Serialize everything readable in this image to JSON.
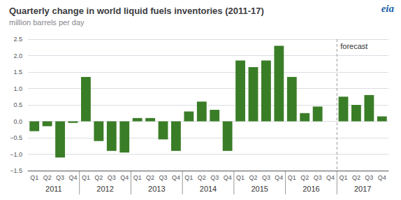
{
  "chart_data": {
    "type": "bar",
    "title": "Quarterly change in world liquid fuels inventories (2011-17)",
    "subtitle": "million barrels per day",
    "categories": [
      "Q1",
      "Q2",
      "Q3",
      "Q4",
      "Q1",
      "Q2",
      "Q3",
      "Q4",
      "Q1",
      "Q2",
      "Q3",
      "Q4",
      "Q1",
      "Q2",
      "Q3",
      "Q4",
      "Q1",
      "Q2",
      "Q3",
      "Q4",
      "Q1",
      "Q2",
      "Q3",
      "Q4",
      "Q1",
      "Q2",
      "Q3",
      "Q4"
    ],
    "values": [
      -0.3,
      -0.15,
      -1.1,
      -0.05,
      1.35,
      -0.6,
      -0.9,
      -0.95,
      0.1,
      0.1,
      -0.55,
      -0.9,
      0.3,
      0.6,
      0.35,
      -0.9,
      1.85,
      1.65,
      1.85,
      2.3,
      1.35,
      0.25,
      0.45,
      0.0,
      0.75,
      0.5,
      0.8,
      0.15
    ],
    "year_labels": [
      "2011",
      "2012",
      "2013",
      "2014",
      "2015",
      "2016",
      "2017"
    ],
    "color": "#3a7d27",
    "ylim": [
      -1.5,
      2.5
    ],
    "yticks": [
      {
        "value": -1.5,
        "label": "−1.5"
      },
      {
        "value": -1.0,
        "label": "−1.0"
      },
      {
        "value": -0.5,
        "label": "−0.5"
      },
      {
        "value": 0.0,
        "label": "0.0"
      },
      0.5,
      {
        "value": 1.0,
        "label": "1.0"
      },
      1.5,
      {
        "value": 2.0,
        "label": "2.0"
      },
      2.5
    ],
    "grid": true,
    "annotations": [
      {
        "text": "forecast",
        "x": 23.5
      },
      {
        "text": "eia",
        "color": "#1a5fa8"
      }
    ]
  }
}
